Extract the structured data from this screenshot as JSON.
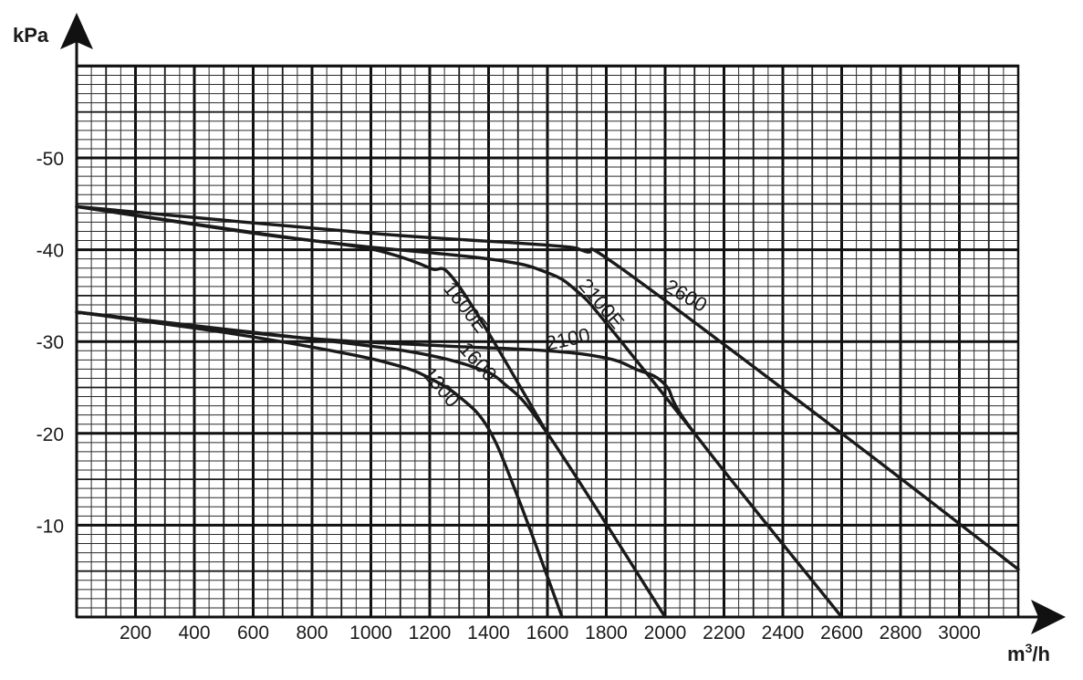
{
  "chart_data": {
    "type": "line",
    "title": "",
    "xlabel_base": "m",
    "xlabel_sup": "3",
    "xlabel_tail": "/h",
    "ylabel": "kPa",
    "xlim": [
      0,
      3200
    ],
    "ylim": [
      0,
      60
    ],
    "grid": true,
    "x_ticks": [
      200,
      400,
      600,
      800,
      1000,
      1200,
      1400,
      1600,
      1800,
      2000,
      2200,
      2400,
      2600,
      2800,
      3000
    ],
    "x_tick_labels": [
      "200",
      "400",
      "600",
      "800",
      "1000",
      "1200",
      "1400",
      "1600",
      "1800",
      "2000",
      "2200",
      "2400",
      "2600",
      "2800",
      "3000"
    ],
    "y_ticks": [
      10,
      20,
      30,
      40,
      50
    ],
    "y_tick_labels": [
      "-10",
      "-20",
      "-30",
      "-40",
      "-50"
    ],
    "series": [
      {
        "name": "1300",
        "points": [
          [
            0,
            33.2
          ],
          [
            500,
            31.0
          ],
          [
            900,
            28.8
          ],
          [
            1100,
            27.3
          ],
          [
            1200,
            26.0
          ],
          [
            1300,
            24.0
          ],
          [
            1400,
            20.5
          ],
          [
            1500,
            13.0
          ],
          [
            1650,
            0
          ]
        ]
      },
      {
        "name": "1600",
        "points": [
          [
            0,
            33.2
          ],
          [
            600,
            31.0
          ],
          [
            1000,
            29.5
          ],
          [
            1200,
            28.5
          ],
          [
            1350,
            27.2
          ],
          [
            1450,
            25.5
          ],
          [
            1600,
            20.0
          ],
          [
            2000,
            0
          ]
        ]
      },
      {
        "name": "1600E",
        "points": [
          [
            0,
            44.7
          ],
          [
            600,
            41.8
          ],
          [
            900,
            40.6
          ],
          [
            1050,
            39.7
          ],
          [
            1200,
            38.0
          ],
          [
            1300,
            36.0
          ],
          [
            1600,
            20.0
          ]
        ]
      },
      {
        "name": "2100",
        "points": [
          [
            0,
            33.2
          ],
          [
            700,
            30.6
          ],
          [
            1200,
            29.6
          ],
          [
            1600,
            29.0
          ],
          [
            1800,
            28.2
          ],
          [
            1900,
            27.0
          ],
          [
            2000,
            25.3
          ],
          [
            2100,
            20.0
          ],
          [
            2600,
            0
          ]
        ]
      },
      {
        "name": "2100E",
        "points": [
          [
            0,
            44.7
          ],
          [
            800,
            41.0
          ],
          [
            1400,
            39.0
          ],
          [
            1600,
            37.5
          ],
          [
            1700,
            35.5
          ],
          [
            1800,
            32.0
          ],
          [
            2100,
            20.0
          ]
        ]
      },
      {
        "name": "2600",
        "points": [
          [
            0,
            44.7
          ],
          [
            1000,
            41.8
          ],
          [
            1600,
            40.5
          ],
          [
            1730,
            39.8
          ],
          [
            1850,
            38.0
          ],
          [
            2600,
            20.0
          ],
          [
            3200,
            5.2
          ]
        ]
      }
    ]
  }
}
